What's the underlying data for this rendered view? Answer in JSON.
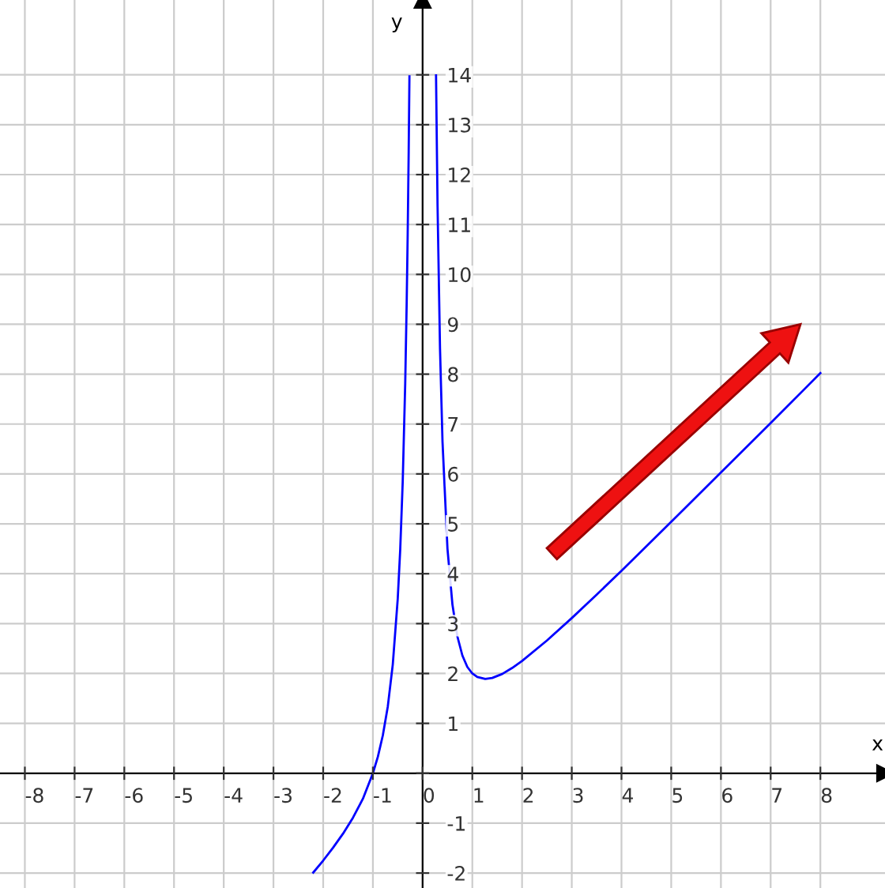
{
  "chart_data": {
    "type": "line",
    "xlabel": "x",
    "ylabel": "y",
    "xlim": [
      -8.5,
      9.3
    ],
    "ylim": [
      -2.3,
      15.5
    ],
    "xticks": [
      -8,
      -7,
      -6,
      -5,
      -4,
      -3,
      -2,
      -1,
      0,
      1,
      2,
      3,
      4,
      5,
      6,
      7,
      8
    ],
    "yticks": [
      -2,
      -1,
      {
        "value": 0,
        "label": null
      },
      1,
      2,
      3,
      4,
      5,
      6,
      7,
      8,
      9,
      10,
      11,
      12,
      13,
      14
    ],
    "grid": true,
    "series": [
      {
        "color": "#0000ff",
        "x": [
          -2.2,
          -2.0,
          -1.8,
          -1.6,
          -1.4,
          -1.2,
          -1.0,
          -0.9,
          -0.8,
          -0.7,
          -0.6,
          -0.5,
          -0.45,
          -0.4,
          -0.35,
          -0.32,
          -0.3,
          -0.28,
          -0.265
        ],
        "values": [
          -1.99,
          -1.75,
          -1.49,
          -1.21,
          -0.89,
          -0.51,
          0,
          0.33,
          0.76,
          1.34,
          2.18,
          3.5,
          4.49,
          5.85,
          7.81,
          9.45,
          10.81,
          12.47,
          13.97
        ]
      },
      {
        "color": "#0000ff",
        "x": [
          0.27,
          0.3,
          0.35,
          0.4,
          0.5,
          0.6,
          0.7,
          0.8,
          0.9,
          1.0,
          1.1,
          1.26,
          1.4,
          1.6,
          1.8,
          2.0,
          2.5,
          3,
          3.5,
          4,
          5,
          6,
          7,
          8
        ],
        "values": [
          13.99,
          11.41,
          8.51,
          6.65,
          4.5,
          3.38,
          2.74,
          2.36,
          2.13,
          2.0,
          1.93,
          1.89,
          1.91,
          1.99,
          2.11,
          2.25,
          2.66,
          3.11,
          3.58,
          4.06,
          5.04,
          6.03,
          7.02,
          8.02
        ]
      }
    ]
  }
}
